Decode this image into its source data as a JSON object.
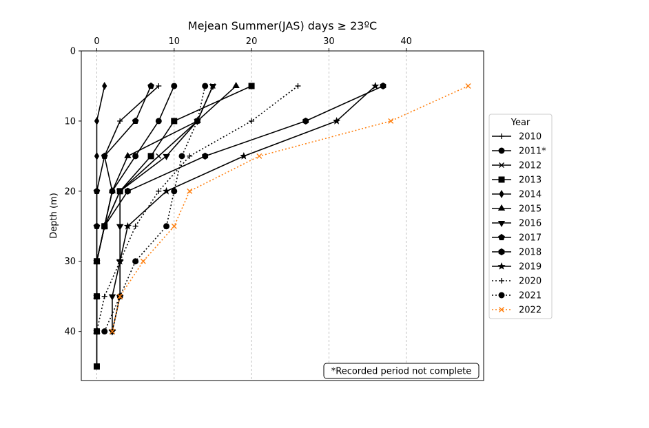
{
  "chart_data": {
    "type": "line",
    "title": "Mejean Summer(JAS) days ≥ 23ºC",
    "xlabel": "",
    "ylabel": "Depth (m)",
    "x_axis_position": "top",
    "y_axis_inverted": true,
    "xlim": [
      -2,
      50
    ],
    "ylim": [
      47,
      0
    ],
    "x_ticks": [
      0,
      10,
      20,
      30,
      40
    ],
    "y_ticks": [
      0,
      10,
      20,
      30,
      40
    ],
    "x_grid": true,
    "y_grid": false,
    "legend": {
      "title": "Year",
      "placement": "right"
    },
    "annotation": "*Recorded period not complete",
    "series": [
      {
        "name": "2010",
        "color": "#000000",
        "dash": "solid",
        "marker": "plus",
        "points": [
          [
            8,
            5
          ],
          [
            3,
            10
          ],
          [
            1,
            15
          ],
          [
            2,
            20
          ],
          [
            1,
            25
          ],
          [
            0,
            30
          ],
          [
            0,
            35
          ],
          [
            0,
            40
          ]
        ]
      },
      {
        "name": "2011*",
        "color": "#000000",
        "dash": "solid",
        "marker": "circle",
        "points": [
          [
            10,
            5
          ],
          [
            8,
            10
          ],
          [
            5,
            15
          ],
          [
            2,
            20
          ],
          [
            1,
            25
          ],
          [
            0,
            30
          ],
          [
            0,
            35
          ],
          [
            0,
            40
          ],
          [
            0,
            45
          ]
        ]
      },
      {
        "name": "2012",
        "color": "#000000",
        "dash": "solid",
        "marker": "x",
        "points": [
          [
            15,
            5
          ],
          [
            13,
            10
          ],
          [
            8,
            15
          ],
          [
            3,
            20
          ],
          [
            1,
            25
          ],
          [
            0,
            30
          ],
          [
            0,
            35
          ],
          [
            0,
            40
          ]
        ]
      },
      {
        "name": "2013",
        "color": "#000000",
        "dash": "solid",
        "marker": "square",
        "points": [
          [
            20,
            5
          ],
          [
            10,
            10
          ],
          [
            7,
            15
          ],
          [
            3,
            20
          ],
          [
            1,
            25
          ],
          [
            0,
            30
          ],
          [
            0,
            35
          ],
          [
            0,
            40
          ],
          [
            0,
            45
          ]
        ]
      },
      {
        "name": "2014",
        "color": "#000000",
        "dash": "solid",
        "marker": "diamond",
        "points": [
          [
            1,
            5
          ],
          [
            0,
            10
          ],
          [
            0,
            15
          ],
          [
            0,
            20
          ],
          [
            0,
            25
          ],
          [
            0,
            30
          ],
          [
            0,
            35
          ],
          [
            0,
            40
          ]
        ]
      },
      {
        "name": "2015",
        "color": "#000000",
        "dash": "solid",
        "marker": "triangle-up",
        "points": [
          [
            18,
            5
          ],
          [
            13,
            10
          ],
          [
            4,
            15
          ],
          [
            2,
            20
          ],
          [
            1,
            25
          ],
          [
            0,
            30
          ],
          [
            0,
            35
          ],
          [
            0,
            40
          ]
        ]
      },
      {
        "name": "2016",
        "color": "#000000",
        "dash": "solid",
        "marker": "triangle-down",
        "points": [
          [
            15,
            5
          ],
          [
            13,
            10
          ],
          [
            9,
            15
          ],
          [
            3,
            20
          ],
          [
            3,
            25
          ],
          [
            3,
            30
          ],
          [
            2,
            35
          ],
          [
            2,
            40
          ]
        ]
      },
      {
        "name": "2017",
        "color": "#000000",
        "dash": "solid",
        "marker": "pentagon",
        "points": [
          [
            7,
            5
          ],
          [
            5,
            10
          ],
          [
            1,
            15
          ],
          [
            0,
            20
          ],
          [
            0,
            25
          ],
          [
            0,
            30
          ],
          [
            0,
            35
          ],
          [
            0,
            40
          ]
        ]
      },
      {
        "name": "2018",
        "color": "#000000",
        "dash": "solid",
        "marker": "hexagon",
        "points": [
          [
            37,
            5
          ],
          [
            27,
            10
          ],
          [
            14,
            15
          ],
          [
            4,
            20
          ],
          [
            1,
            25
          ],
          [
            0,
            30
          ],
          [
            0,
            35
          ],
          [
            0,
            40
          ]
        ]
      },
      {
        "name": "2019",
        "color": "#000000",
        "dash": "solid",
        "marker": "star",
        "points": [
          [
            36,
            5
          ],
          [
            31,
            10
          ],
          [
            19,
            15
          ],
          [
            9,
            20
          ],
          [
            4,
            25
          ],
          [
            3,
            30
          ],
          [
            3,
            35
          ],
          [
            2,
            40
          ]
        ]
      },
      {
        "name": "2020",
        "color": "#000000",
        "dash": "dotted",
        "marker": "plus",
        "points": [
          [
            26,
            5
          ],
          [
            20,
            10
          ],
          [
            12,
            15
          ],
          [
            8,
            20
          ],
          [
            5,
            25
          ],
          [
            3,
            30
          ],
          [
            1,
            35
          ],
          [
            0,
            40
          ]
        ]
      },
      {
        "name": "2021",
        "color": "#000000",
        "dash": "dotted",
        "marker": "circle",
        "points": [
          [
            14,
            5
          ],
          [
            13,
            10
          ],
          [
            11,
            15
          ],
          [
            10,
            20
          ],
          [
            9,
            25
          ],
          [
            5,
            30
          ],
          [
            3,
            35
          ],
          [
            1,
            40
          ]
        ]
      },
      {
        "name": "2022",
        "color": "#ff7f0e",
        "dash": "dotted",
        "marker": "x",
        "points": [
          [
            48,
            5
          ],
          [
            38,
            10
          ],
          [
            21,
            15
          ],
          [
            12,
            20
          ],
          [
            10,
            25
          ],
          [
            6,
            30
          ],
          [
            3,
            35
          ],
          [
            2,
            40
          ]
        ]
      }
    ]
  }
}
